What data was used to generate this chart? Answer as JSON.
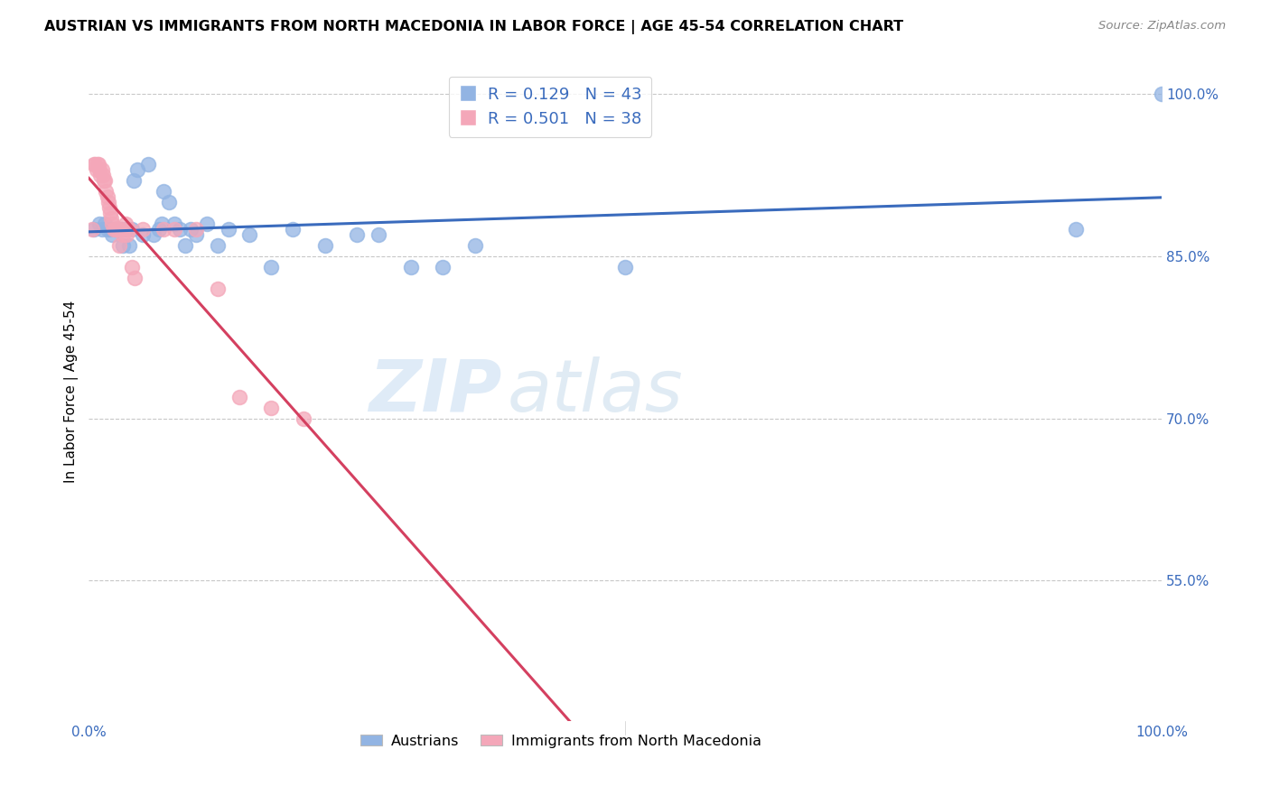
{
  "title": "AUSTRIAN VS IMMIGRANTS FROM NORTH MACEDONIA IN LABOR FORCE | AGE 45-54 CORRELATION CHART",
  "source": "Source: ZipAtlas.com",
  "ylabel": "In Labor Force | Age 45-54",
  "watermark_zip": "ZIP",
  "watermark_atlas": "atlas",
  "blue_R": 0.129,
  "blue_N": 43,
  "pink_R": 0.501,
  "pink_N": 38,
  "xlim": [
    0.0,
    1.0
  ],
  "ylim": [
    0.42,
    1.03
  ],
  "ytick_positions": [
    0.55,
    0.7,
    0.85,
    1.0
  ],
  "ytick_labels": [
    "55.0%",
    "70.0%",
    "85.0%",
    "100.0%"
  ],
  "blue_color": "#92b4e3",
  "pink_color": "#f4a7b9",
  "blue_line_color": "#3a6bbd",
  "pink_line_color": "#d44060",
  "grid_color": "#c8c8c8",
  "blue_points_x": [
    0.005,
    0.01,
    0.012,
    0.015,
    0.017,
    0.02,
    0.022,
    0.025,
    0.028,
    0.03,
    0.032,
    0.035,
    0.038,
    0.04,
    0.042,
    0.045,
    0.05,
    0.055,
    0.06,
    0.065,
    0.068,
    0.07,
    0.075,
    0.08,
    0.085,
    0.09,
    0.095,
    0.1,
    0.11,
    0.12,
    0.13,
    0.15,
    0.17,
    0.19,
    0.22,
    0.25,
    0.27,
    0.3,
    0.33,
    0.36,
    0.5,
    0.92,
    1.0
  ],
  "blue_points_y": [
    0.875,
    0.88,
    0.875,
    0.88,
    0.875,
    0.875,
    0.87,
    0.875,
    0.875,
    0.875,
    0.86,
    0.875,
    0.86,
    0.875,
    0.92,
    0.93,
    0.87,
    0.935,
    0.87,
    0.875,
    0.88,
    0.91,
    0.9,
    0.88,
    0.875,
    0.86,
    0.875,
    0.87,
    0.88,
    0.86,
    0.875,
    0.87,
    0.84,
    0.875,
    0.86,
    0.87,
    0.87,
    0.84,
    0.84,
    0.86,
    0.84,
    0.875,
    1.0
  ],
  "pink_points_x": [
    0.003,
    0.005,
    0.006,
    0.007,
    0.008,
    0.009,
    0.01,
    0.011,
    0.012,
    0.013,
    0.014,
    0.015,
    0.016,
    0.017,
    0.018,
    0.019,
    0.02,
    0.021,
    0.022,
    0.023,
    0.025,
    0.027,
    0.028,
    0.03,
    0.032,
    0.034,
    0.035,
    0.038,
    0.04,
    0.043,
    0.05,
    0.07,
    0.08,
    0.1,
    0.12,
    0.14,
    0.17,
    0.2
  ],
  "pink_points_y": [
    0.875,
    0.935,
    0.935,
    0.93,
    0.935,
    0.935,
    0.93,
    0.925,
    0.93,
    0.925,
    0.92,
    0.92,
    0.91,
    0.905,
    0.9,
    0.895,
    0.89,
    0.885,
    0.88,
    0.875,
    0.875,
    0.875,
    0.86,
    0.875,
    0.87,
    0.88,
    0.87,
    0.875,
    0.84,
    0.83,
    0.875,
    0.875,
    0.875,
    0.875,
    0.82,
    0.72,
    0.71,
    0.7
  ]
}
